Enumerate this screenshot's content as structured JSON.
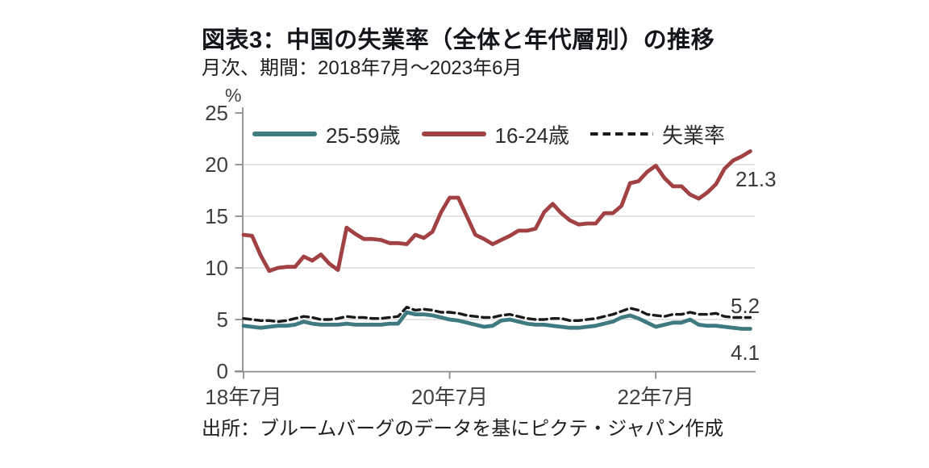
{
  "header": {
    "title": "図表3：中国の失業率（全体と年代層別）の推移",
    "subtitle": "月次、期間：2018年7月～2023年6月"
  },
  "source": "出所：ブルームバーグのデータを基にピクテ・ジャパン作成",
  "chart_data": {
    "type": "line",
    "title": "図表3：中国の失業率（全体と年代層別）の推移",
    "unit_label": "%",
    "ylim": [
      0,
      25
    ],
    "yticks": [
      0,
      5,
      10,
      15,
      20,
      25
    ],
    "gridlines_at": [
      5,
      10,
      15,
      20
    ],
    "grid": "horizontal-only",
    "legend_position": "top-inside",
    "x_axis": {
      "start": "2018-07",
      "end": "2023-06",
      "frequency": "monthly",
      "tick_labels": [
        {
          "index": 0,
          "label": "18年7月"
        },
        {
          "index": 24,
          "label": "20年7月"
        },
        {
          "index": 48,
          "label": "22年7月"
        }
      ]
    },
    "x": [
      "2018-07",
      "2018-08",
      "2018-09",
      "2018-10",
      "2018-11",
      "2018-12",
      "2019-01",
      "2019-02",
      "2019-03",
      "2019-04",
      "2019-05",
      "2019-06",
      "2019-07",
      "2019-08",
      "2019-09",
      "2019-10",
      "2019-11",
      "2019-12",
      "2020-01",
      "2020-02",
      "2020-03",
      "2020-04",
      "2020-05",
      "2020-06",
      "2020-07",
      "2020-08",
      "2020-09",
      "2020-10",
      "2020-11",
      "2020-12",
      "2021-01",
      "2021-02",
      "2021-03",
      "2021-04",
      "2021-05",
      "2021-06",
      "2021-07",
      "2021-08",
      "2021-09",
      "2021-10",
      "2021-11",
      "2021-12",
      "2022-01",
      "2022-02",
      "2022-03",
      "2022-04",
      "2022-05",
      "2022-06",
      "2022-07",
      "2022-08",
      "2022-09",
      "2022-10",
      "2022-11",
      "2022-12",
      "2023-01",
      "2023-02",
      "2023-03",
      "2023-04",
      "2023-05",
      "2023-06"
    ],
    "series": [
      {
        "name": "25-59歳",
        "style": "solid",
        "color": "#3E7A80",
        "end_label": "4.1",
        "values": [
          4.4,
          4.3,
          4.2,
          4.3,
          4.4,
          4.4,
          4.5,
          4.8,
          4.6,
          4.5,
          4.5,
          4.5,
          4.6,
          4.5,
          4.5,
          4.5,
          4.5,
          4.6,
          4.6,
          5.7,
          5.5,
          5.5,
          5.4,
          5.2,
          5.0,
          4.9,
          4.7,
          4.5,
          4.3,
          4.4,
          4.9,
          5.0,
          4.8,
          4.6,
          4.5,
          4.5,
          4.4,
          4.3,
          4.2,
          4.2,
          4.3,
          4.4,
          4.6,
          4.8,
          5.2,
          5.4,
          5.1,
          4.7,
          4.3,
          4.5,
          4.7,
          4.7,
          5.0,
          4.5,
          4.4,
          4.4,
          4.3,
          4.2,
          4.1,
          4.1
        ]
      },
      {
        "name": "16-24歳",
        "style": "solid",
        "color": "#A14143",
        "end_label": "21.3",
        "values": [
          13.2,
          13.1,
          11.2,
          9.7,
          10.0,
          10.1,
          10.1,
          11.1,
          10.7,
          11.3,
          10.4,
          9.8,
          13.9,
          13.3,
          12.8,
          12.8,
          12.7,
          12.4,
          12.4,
          12.3,
          13.2,
          12.9,
          13.5,
          15.4,
          16.8,
          16.8,
          15.0,
          13.2,
          12.8,
          12.3,
          12.7,
          13.1,
          13.6,
          13.6,
          13.8,
          15.4,
          16.2,
          15.3,
          14.6,
          14.2,
          14.3,
          14.3,
          15.3,
          15.3,
          16.0,
          18.2,
          18.4,
          19.3,
          19.9,
          18.7,
          17.9,
          17.9,
          17.1,
          16.7,
          17.3,
          18.1,
          19.6,
          20.4,
          20.8,
          21.3
        ]
      },
      {
        "name": "失業率",
        "style": "dashed",
        "color": "#1A1A1A",
        "end_label": "5.2",
        "values": [
          5.1,
          5.0,
          4.9,
          4.9,
          4.8,
          4.9,
          5.1,
          5.3,
          5.2,
          5.0,
          5.0,
          5.1,
          5.3,
          5.2,
          5.2,
          5.1,
          5.1,
          5.2,
          5.3,
          6.2,
          5.9,
          6.0,
          5.9,
          5.7,
          5.7,
          5.6,
          5.4,
          5.3,
          5.2,
          5.2,
          5.4,
          5.5,
          5.3,
          5.1,
          5.0,
          5.0,
          5.1,
          5.1,
          4.9,
          4.9,
          5.0,
          5.1,
          5.3,
          5.5,
          5.8,
          6.1,
          5.9,
          5.5,
          5.4,
          5.3,
          5.5,
          5.5,
          5.7,
          5.5,
          5.5,
          5.6,
          5.3,
          5.2,
          5.2,
          5.2
        ]
      }
    ],
    "colors": {
      "grid": "#D7D7D7",
      "axis": "#8C8C8C",
      "tick_text": "#3F3F3F"
    }
  }
}
